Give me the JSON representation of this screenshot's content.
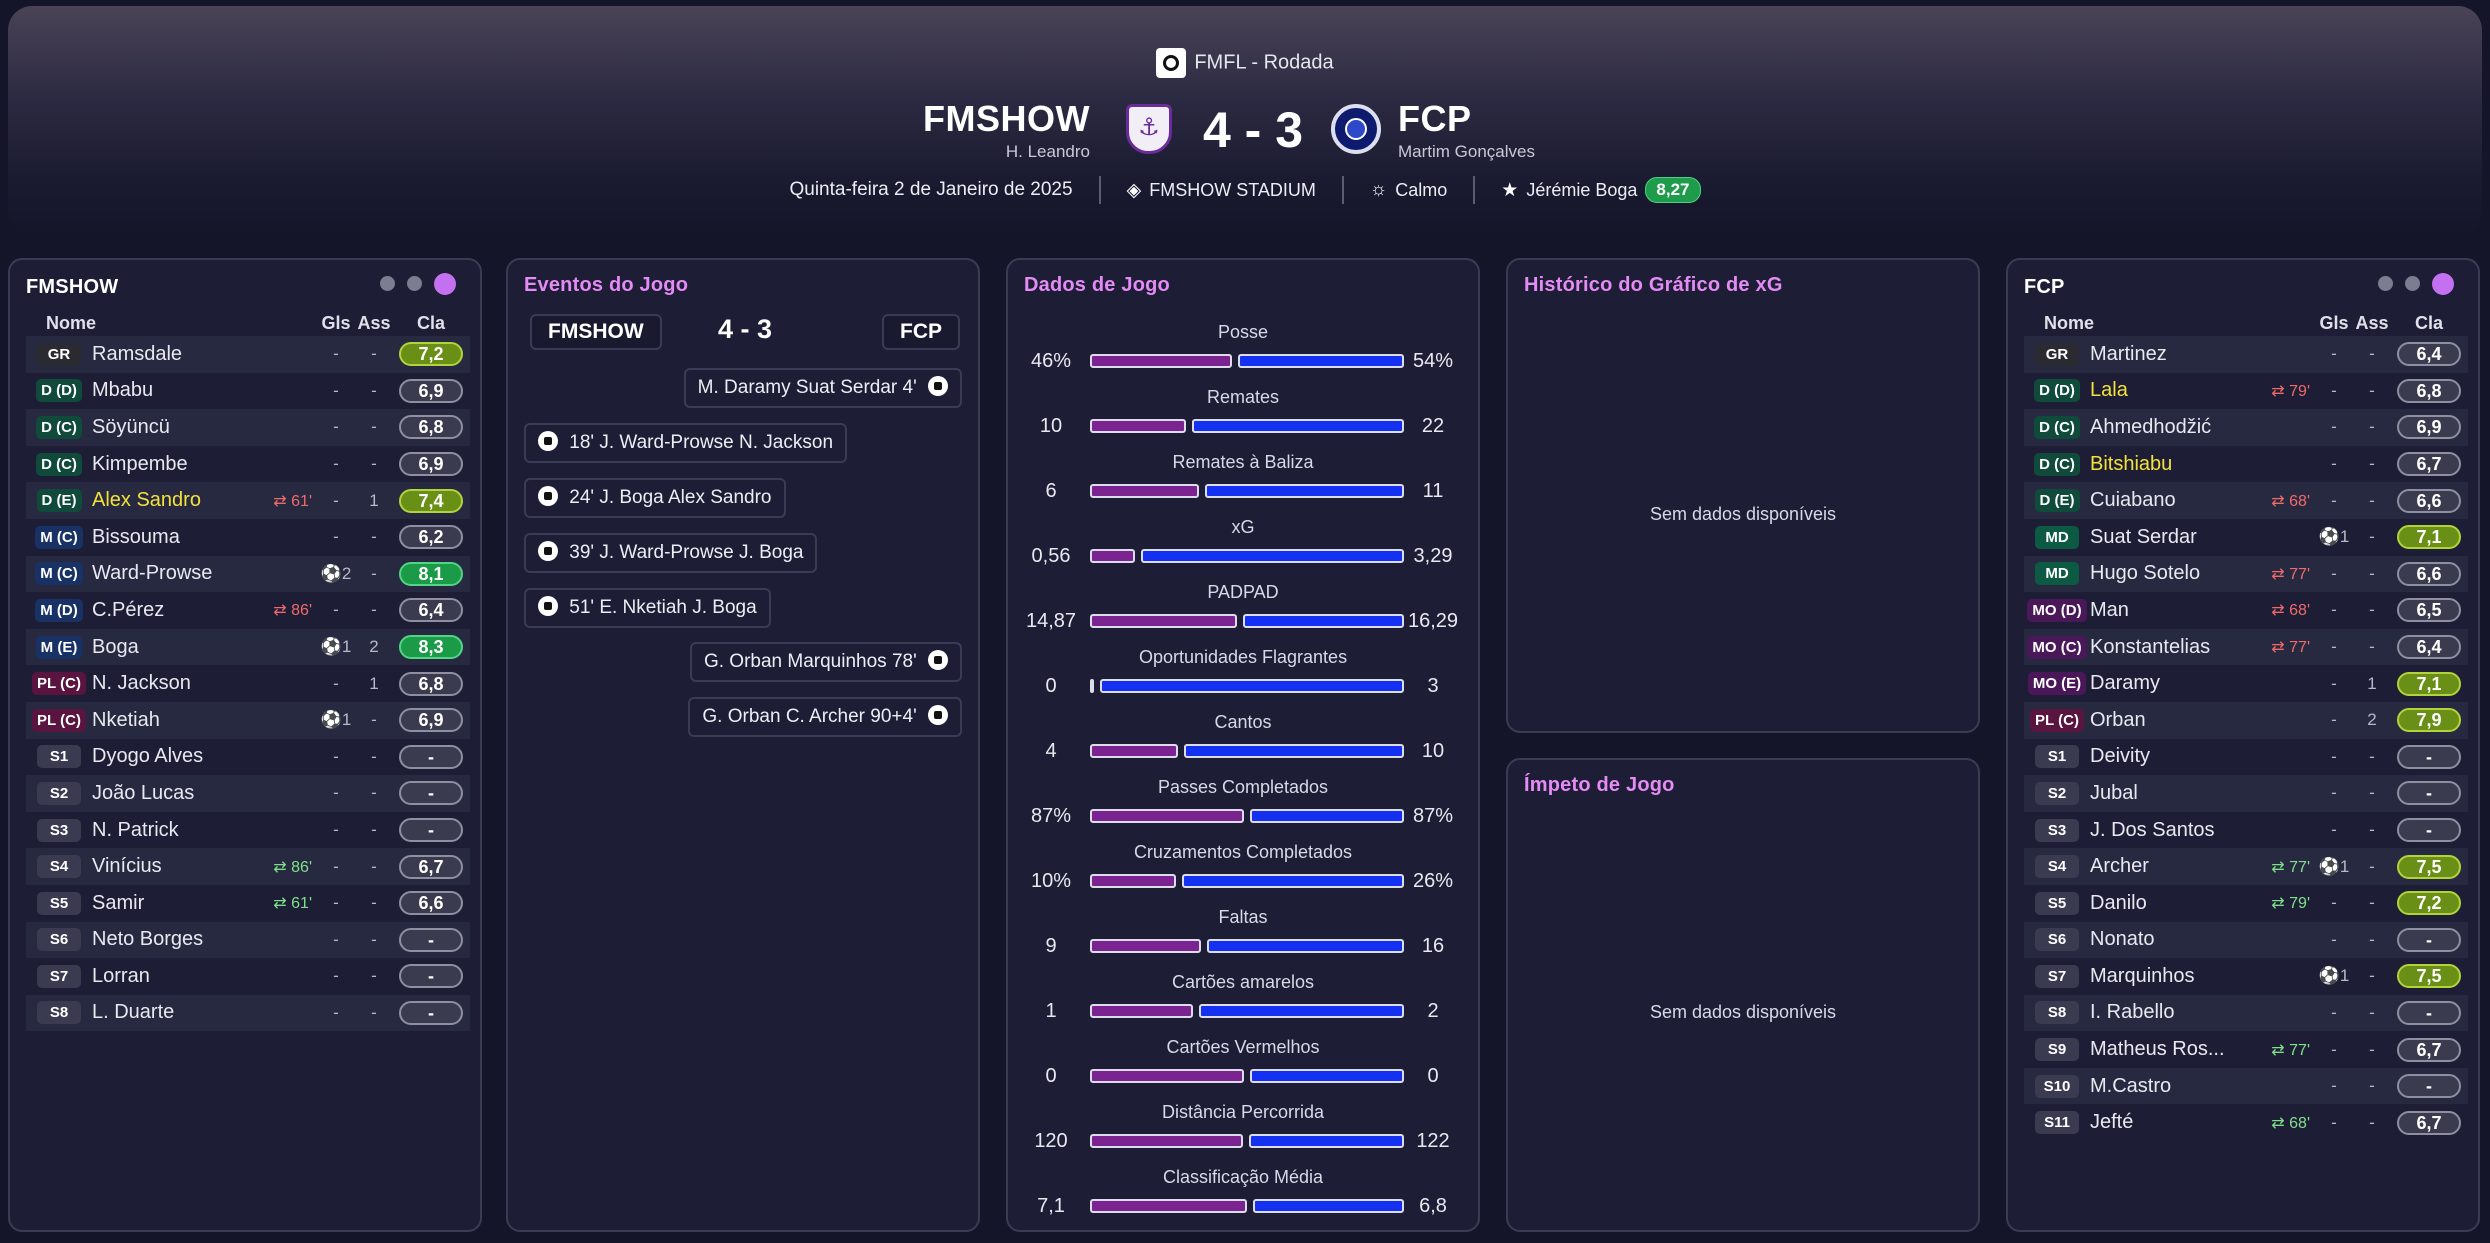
{
  "header": {
    "competition": "FMFL - Rodada",
    "home": {
      "name": "FMSHOW",
      "coach": "H. Leandro"
    },
    "away": {
      "name": "FCP",
      "coach": "Martim Gonçalves"
    },
    "score": "4 - 3",
    "date": "Quinta-feira 2 de Janeiro de 2025",
    "stadium": "FMSHOW STADIUM",
    "weather": "Calmo",
    "motm": {
      "name": "Jérémie Boga",
      "rating": "8,27"
    }
  },
  "home_panel": {
    "title": "FMSHOW",
    "columns": {
      "name": "Nome",
      "gls": "Gls",
      "ass": "Ass",
      "cla": "Cla"
    },
    "rows": [
      {
        "pos": "GR",
        "name": "Ramsdale",
        "sub": "",
        "gls": "-",
        "ass": "-",
        "cla": "7,2"
      },
      {
        "pos": "D (D)",
        "name": "Mbabu",
        "sub": "",
        "gls": "-",
        "ass": "-",
        "cla": "6,9"
      },
      {
        "pos": "D (C)",
        "name": "Söyüncü",
        "sub": "",
        "gls": "-",
        "ass": "-",
        "cla": "6,8"
      },
      {
        "pos": "D (C)",
        "name": "Kimpembe",
        "sub": "",
        "gls": "-",
        "ass": "-",
        "cla": "6,9"
      },
      {
        "pos": "D (E)",
        "name": "Alex Sandro",
        "sub": "⇄ 61'",
        "gls": "-",
        "ass": "1",
        "cla": "7,4"
      },
      {
        "pos": "M (C)",
        "name": "Bissouma",
        "sub": "",
        "gls": "-",
        "ass": "-",
        "cla": "6,2"
      },
      {
        "pos": "M (C)",
        "name": "Ward-Prowse",
        "sub": "",
        "gls": "⚽2",
        "ass": "-",
        "cla": "8,1"
      },
      {
        "pos": "M (D)",
        "name": "C.Pérez",
        "sub": "⇄ 86'",
        "gls": "-",
        "ass": "-",
        "cla": "6,4"
      },
      {
        "pos": "M (E)",
        "name": "Boga",
        "sub": "",
        "gls": "⚽1",
        "ass": "2",
        "cla": "8,3"
      },
      {
        "pos": "PL (C)",
        "name": "N. Jackson",
        "sub": "",
        "gls": "-",
        "ass": "1",
        "cla": "6,8"
      },
      {
        "pos": "PL (C)",
        "name": "Nketiah",
        "sub": "",
        "gls": "⚽1",
        "ass": "-",
        "cla": "6,9"
      },
      {
        "pos": "S1",
        "name": "Dyogo Alves",
        "sub": "",
        "gls": "-",
        "ass": "-",
        "cla": "-"
      },
      {
        "pos": "S2",
        "name": "João Lucas",
        "sub": "",
        "gls": "-",
        "ass": "-",
        "cla": "-"
      },
      {
        "pos": "S3",
        "name": "N. Patrick",
        "sub": "",
        "gls": "-",
        "ass": "-",
        "cla": "-"
      },
      {
        "pos": "S4",
        "name": "Vinícius",
        "sub": "⇄ 86'",
        "gls": "-",
        "ass": "-",
        "cla": "6,7"
      },
      {
        "pos": "S5",
        "name": "Samir",
        "sub": "⇄ 61'",
        "gls": "-",
        "ass": "-",
        "cla": "6,6"
      },
      {
        "pos": "S6",
        "name": "Neto Borges",
        "sub": "",
        "gls": "-",
        "ass": "-",
        "cla": "-"
      },
      {
        "pos": "S7",
        "name": "Lorran",
        "sub": "",
        "gls": "-",
        "ass": "-",
        "cla": "-"
      },
      {
        "pos": "S8",
        "name": "L. Duarte",
        "sub": "",
        "gls": "-",
        "ass": "-",
        "cla": "-"
      }
    ]
  },
  "away_panel": {
    "title": "FCP",
    "columns": {
      "name": "Nome",
      "gls": "Gls",
      "ass": "Ass",
      "cla": "Cla"
    },
    "rows": [
      {
        "pos": "GR",
        "name": "Martinez",
        "sub": "",
        "gls": "-",
        "ass": "-",
        "cla": "6,4"
      },
      {
        "pos": "D (D)",
        "name": "Lala",
        "sub": "⇄ 79'",
        "gls": "-",
        "ass": "-",
        "cla": "6,8"
      },
      {
        "pos": "D (C)",
        "name": "Ahmedhodžić",
        "sub": "",
        "gls": "-",
        "ass": "-",
        "cla": "6,9"
      },
      {
        "pos": "D (C)",
        "name": "Bitshiabu",
        "sub": "",
        "gls": "-",
        "ass": "-",
        "cla": "6,7"
      },
      {
        "pos": "D (E)",
        "name": "Cuiabano",
        "sub": "⇄ 68'",
        "gls": "-",
        "ass": "-",
        "cla": "6,6"
      },
      {
        "pos": "MD",
        "name": "Suat Serdar",
        "sub": "",
        "gls": "⚽1",
        "ass": "-",
        "cla": "7,1"
      },
      {
        "pos": "MD",
        "name": "Hugo Sotelo",
        "sub": "⇄ 77'",
        "gls": "-",
        "ass": "-",
        "cla": "6,6"
      },
      {
        "pos": "MO (D)",
        "name": "Man",
        "sub": "⇄ 68'",
        "gls": "-",
        "ass": "-",
        "cla": "6,5"
      },
      {
        "pos": "MO (C)",
        "name": "Konstantelias",
        "sub": "⇄ 77'",
        "gls": "-",
        "ass": "-",
        "cla": "6,4"
      },
      {
        "pos": "MO (E)",
        "name": "Daramy",
        "sub": "",
        "gls": "-",
        "ass": "1",
        "cla": "7,1"
      },
      {
        "pos": "PL (C)",
        "name": "Orban",
        "sub": "",
        "gls": "-",
        "ass": "2",
        "cla": "7,9"
      },
      {
        "pos": "S1",
        "name": "Deivity",
        "sub": "",
        "gls": "-",
        "ass": "-",
        "cla": "-"
      },
      {
        "pos": "S2",
        "name": "Jubal",
        "sub": "",
        "gls": "-",
        "ass": "-",
        "cla": "-"
      },
      {
        "pos": "S3",
        "name": "J. Dos Santos",
        "sub": "",
        "gls": "-",
        "ass": "-",
        "cla": "-"
      },
      {
        "pos": "S4",
        "name": "Archer",
        "sub": "⇄ 77'",
        "gls": "⚽1",
        "ass": "-",
        "cla": "7,5"
      },
      {
        "pos": "S5",
        "name": "Danilo",
        "sub": "⇄ 79'",
        "gls": "-",
        "ass": "-",
        "cla": "7,2"
      },
      {
        "pos": "S6",
        "name": "Nonato",
        "sub": "",
        "gls": "-",
        "ass": "-",
        "cla": "-"
      },
      {
        "pos": "S7",
        "name": "Marquinhos",
        "sub": "",
        "gls": "⚽1",
        "ass": "-",
        "cla": "7,5"
      },
      {
        "pos": "S8",
        "name": "I. Rabello",
        "sub": "",
        "gls": "-",
        "ass": "-",
        "cla": "-"
      },
      {
        "pos": "S9",
        "name": "Matheus Ros...",
        "sub": "⇄ 77'",
        "gls": "-",
        "ass": "-",
        "cla": "6,7"
      },
      {
        "pos": "S10",
        "name": "M.Castro",
        "sub": "",
        "gls": "-",
        "ass": "-",
        "cla": "-"
      },
      {
        "pos": "S11",
        "name": "Jefté",
        "sub": "⇄ 68'",
        "gls": "-",
        "ass": "-",
        "cla": "6,7"
      }
    ]
  },
  "events_panel": {
    "title": "Eventos do Jogo",
    "home": "FMSHOW",
    "score": "4 - 3",
    "away": "FCP",
    "events": [
      {
        "side": "away",
        "text": "M. Daramy  Suat Serdar  4'"
      },
      {
        "side": "home",
        "text": "18'  J. Ward-Prowse  N. Jackson"
      },
      {
        "side": "home",
        "text": "24'  J. Boga  Alex Sandro"
      },
      {
        "side": "home",
        "text": "39'  J. Ward-Prowse  J. Boga"
      },
      {
        "side": "home",
        "text": "51'  E. Nketiah  J. Boga"
      },
      {
        "side": "away",
        "text": "G. Orban  Marquinhos  78'"
      },
      {
        "side": "away",
        "text": "G. Orban  C. Archer  90+4'"
      }
    ]
  },
  "stats_panel": {
    "title": "Dados de Jogo",
    "colors": {
      "home": "#7b2391",
      "away": "#1430f0"
    },
    "stats": [
      {
        "label": "Posse",
        "home": "46%",
        "away": "54%",
        "hv": 46,
        "av": 54
      },
      {
        "label": "Remates",
        "home": "10",
        "away": "22",
        "hv": 10,
        "av": 22
      },
      {
        "label": "Remates à Baliza",
        "home": "6",
        "away": "11",
        "hv": 6,
        "av": 11
      },
      {
        "label": "xG",
        "home": "0,56",
        "away": "3,29",
        "hv": 0.56,
        "av": 3.29
      },
      {
        "label": "PADPAD",
        "home": "14,87",
        "away": "16,29",
        "hv": 14.87,
        "av": 16.29
      },
      {
        "label": "Oportunidades Flagrantes",
        "home": "0",
        "away": "3",
        "hv": 0,
        "av": 3
      },
      {
        "label": "Cantos",
        "home": "4",
        "away": "10",
        "hv": 4,
        "av": 10
      },
      {
        "label": "Passes Completados",
        "home": "87%",
        "away": "87%",
        "hv": 87,
        "av": 87
      },
      {
        "label": "Cruzamentos Completados",
        "home": "10%",
        "away": "26%",
        "hv": 10,
        "av": 26
      },
      {
        "label": "Faltas",
        "home": "9",
        "away": "16",
        "hv": 9,
        "av": 16
      },
      {
        "label": "Cartões amarelos",
        "home": "1",
        "away": "2",
        "hv": 1,
        "av": 2
      },
      {
        "label": "Cartões Vermelhos",
        "home": "0",
        "away": "0",
        "hv": 0,
        "av": 0
      },
      {
        "label": "Distância Percorrida",
        "home": "120",
        "away": "122",
        "hv": 120,
        "av": 122
      },
      {
        "label": "Classificação Média",
        "home": "7,1",
        "away": "6,8",
        "hv": 7.1,
        "av": 6.8
      }
    ]
  },
  "xg_panel": {
    "title": "Histórico do Gráfico de xG",
    "empty": "Sem dados disponíveis"
  },
  "momentum_panel": {
    "title": "Ímpeto de Jogo",
    "empty": "Sem dados disponíveis"
  }
}
